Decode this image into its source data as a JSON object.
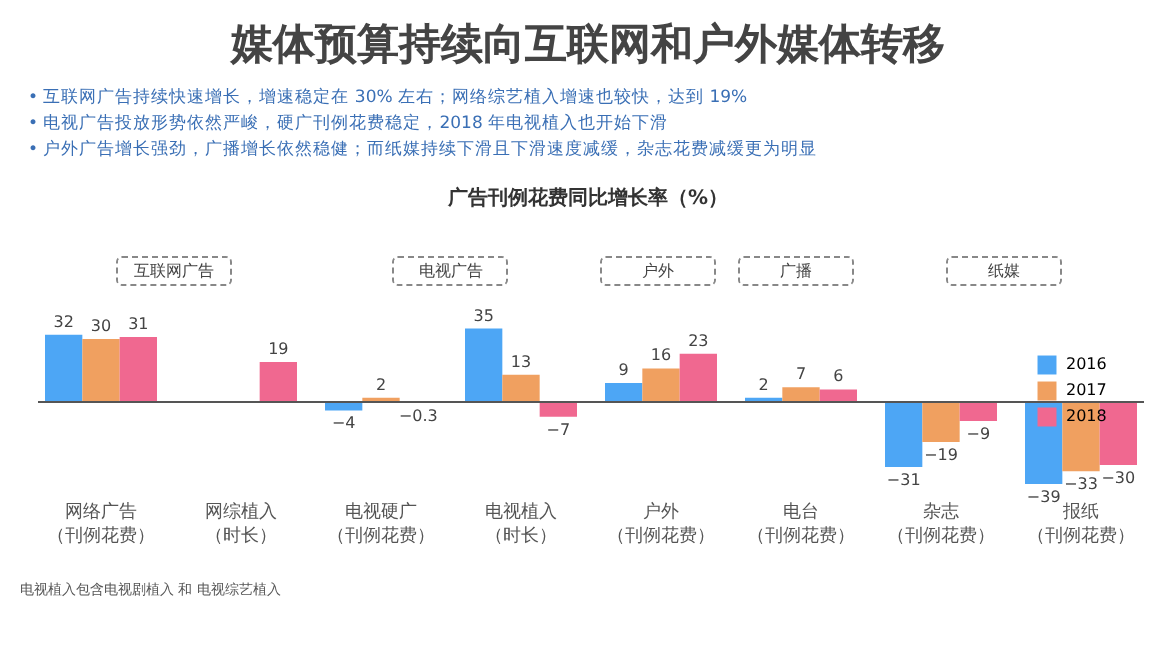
{
  "chart_data": {
    "type": "bar",
    "title": "媒体预算持续向互联网和户外媒体转移",
    "subtitle": "广告刊例花费同比增长率（%）",
    "annotations": [
      "• 互联网广告持续快速增长，增速稳定在 30% 左右；网络综艺植入增速也较快，达到 19%",
      "• 电视广告投放形势依然严峻，硬广刊例花费稳定，2018 年电视植入也开始下滑",
      "• 户外广告增长强劲，广播增长依然稳健；而纸媒持续下滑且下滑速度减缓，杂志花费减缓更为明显",
      "互联网广告",
      "电视广告",
      "户外",
      "广播",
      "纸媒",
      "电视植入包含电视剧植入 和 电视综艺植入"
    ],
    "categories": [
      "网络广告（刊例花费）",
      "网综植入（时长）",
      "电视硬广（刊例花费）",
      "电视植入（时长）",
      "户外（刊例花费）",
      "电台（刊例花费）",
      "杂志（刊例花费）",
      "报纸（刊例花费）"
    ],
    "series": [
      {
        "name": "2016",
        "color": "#4da6f5",
        "values": [
          32,
          null,
          -4,
          35,
          9,
          2,
          -31,
          -39
        ]
      },
      {
        "name": "2017",
        "color": "#f0a060",
        "values": [
          30,
          null,
          2,
          13,
          16,
          7,
          -19,
          -33
        ]
      },
      {
        "name": "2018",
        "color": "#f06890",
        "values": [
          31,
          19,
          -0.3,
          -7,
          23,
          6,
          -9,
          -30
        ]
      }
    ],
    "data_labels": true,
    "legend": "top right"
  }
}
